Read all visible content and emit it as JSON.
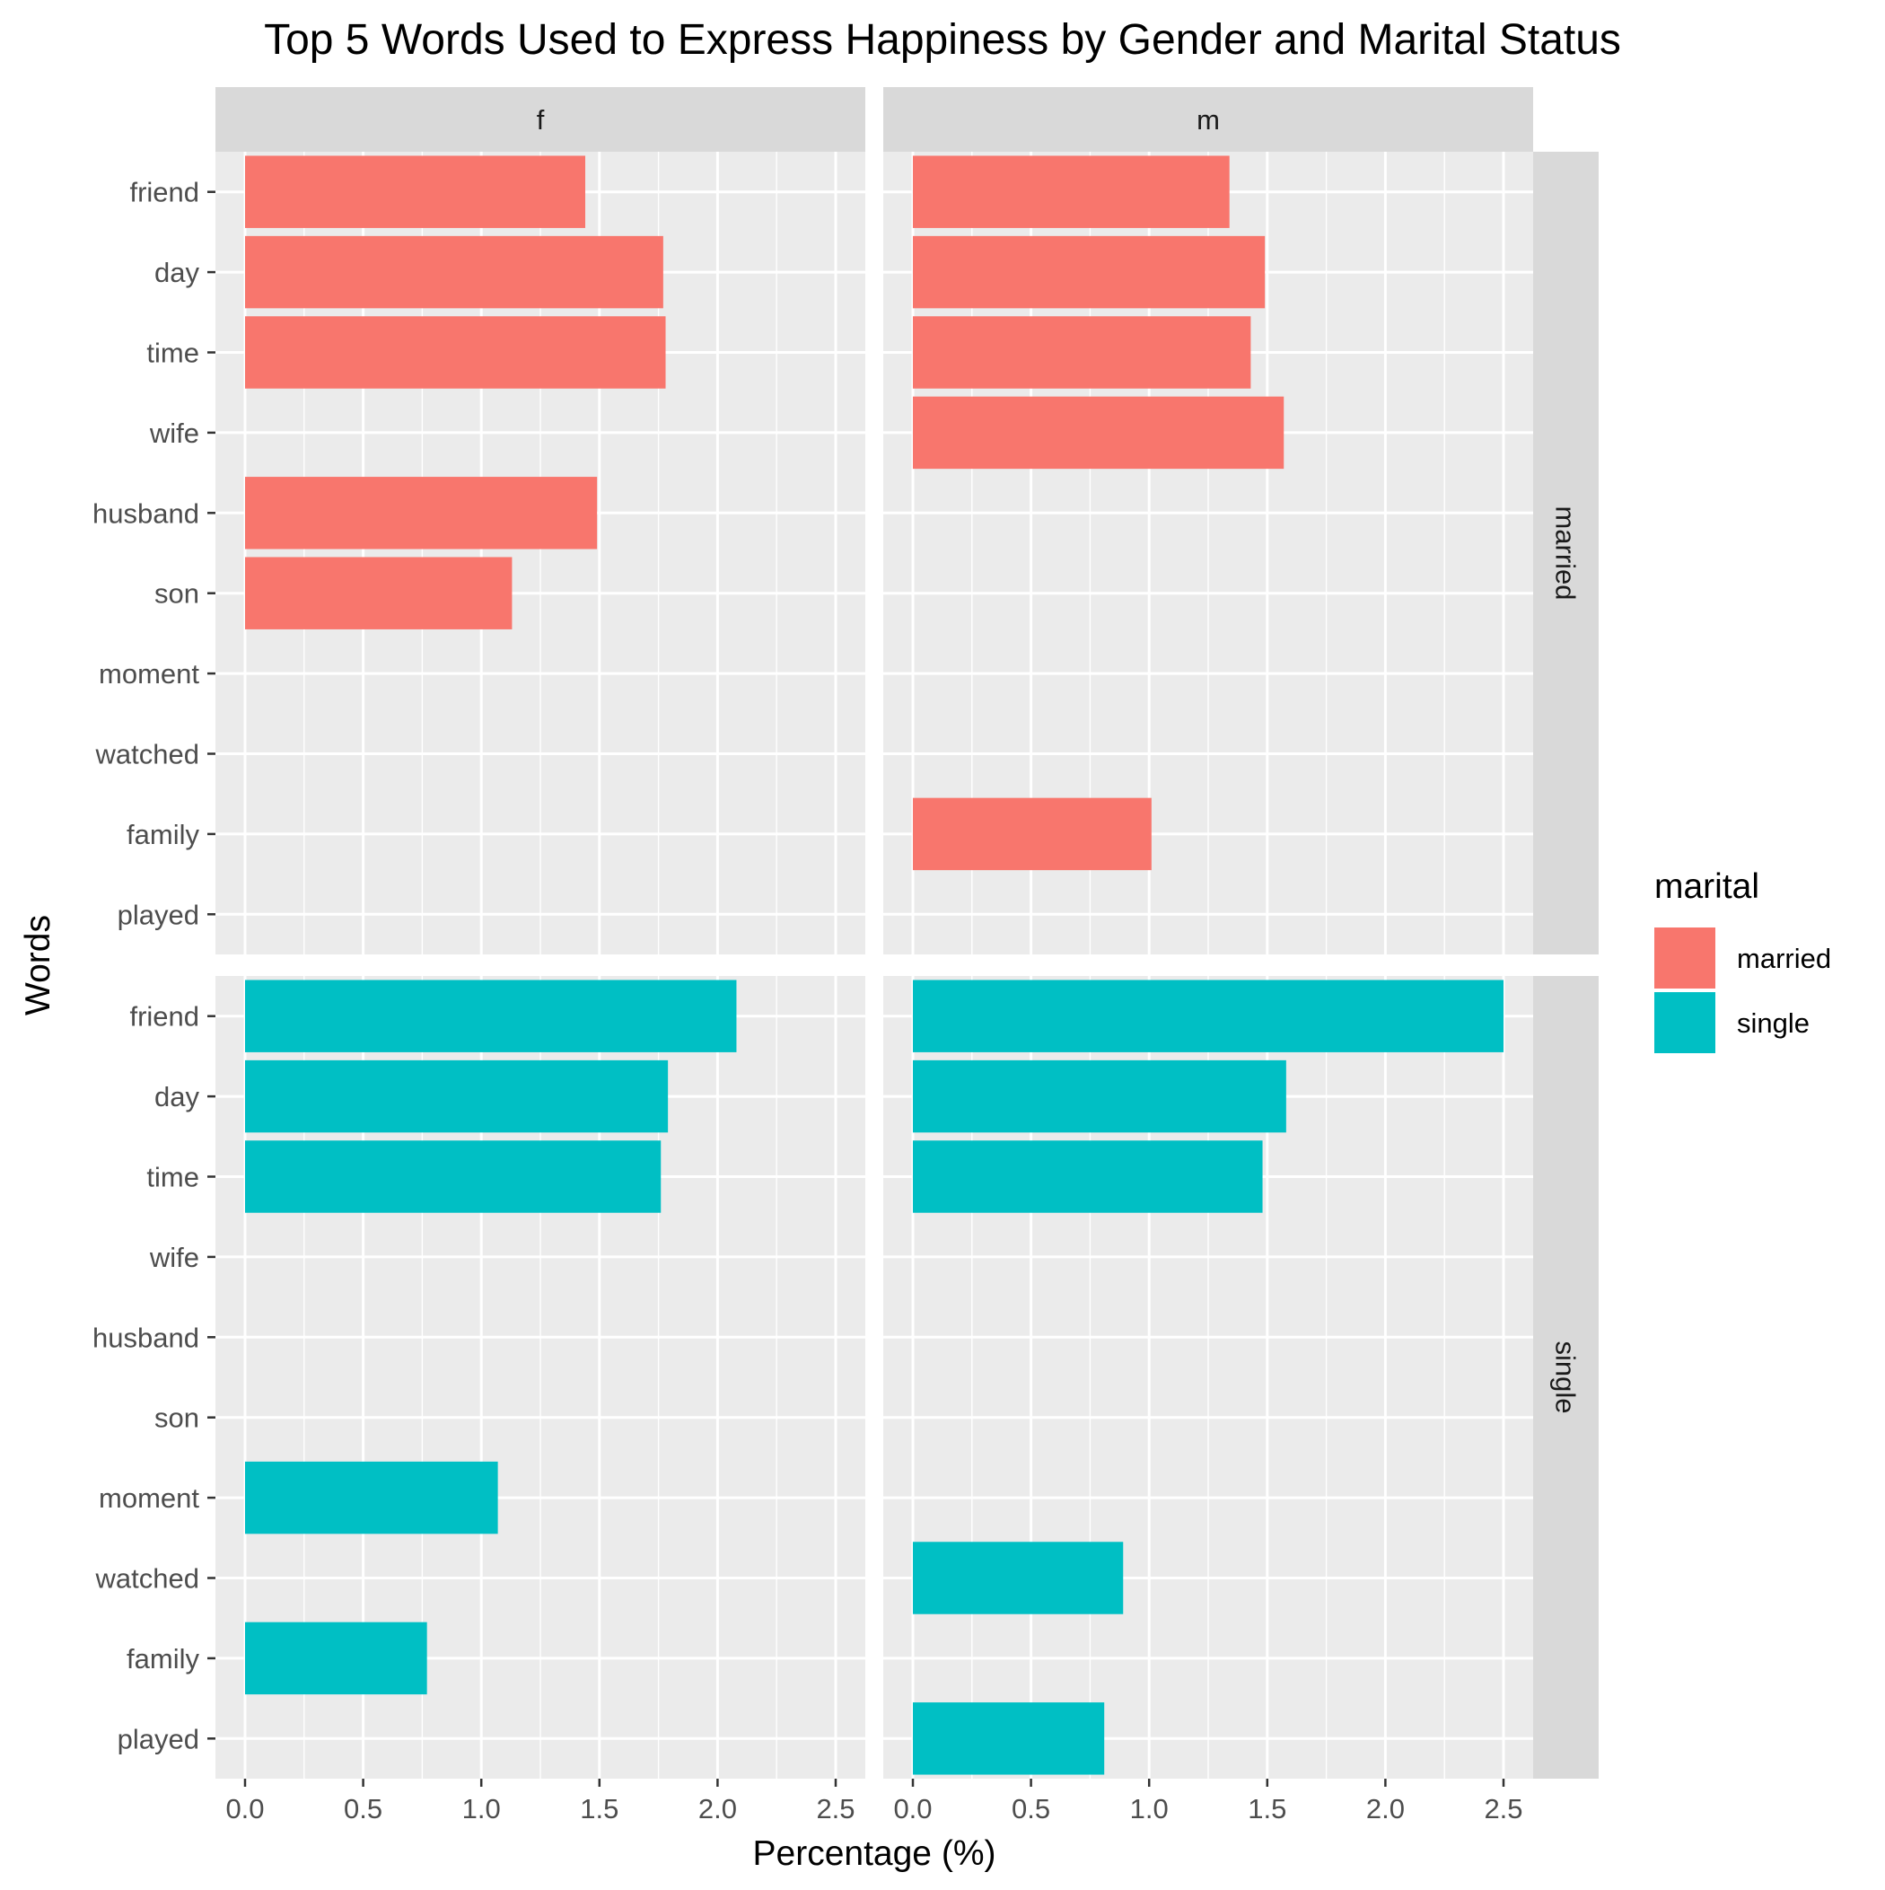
{
  "chart_data": {
    "type": "bar",
    "orientation": "horizontal",
    "title": "Top 5 Words Used to Express Happiness by Gender and Marital Status",
    "xlabel": "Percentage (%)",
    "ylabel": "Words",
    "xlim": [
      0,
      2.5
    ],
    "x_ticks": [
      "0.0",
      "0.5",
      "1.0",
      "1.5",
      "2.0",
      "2.5"
    ],
    "categories": [
      "friend",
      "day",
      "time",
      "wife",
      "husband",
      "son",
      "moment",
      "watched",
      "family",
      "played"
    ],
    "facet_columns": [
      "f",
      "m"
    ],
    "facet_rows": [
      "married",
      "single"
    ],
    "legend": {
      "title": "marital",
      "position": "right",
      "items": [
        {
          "label": "married",
          "color": "#F8766D"
        },
        {
          "label": "single",
          "color": "#00BFC4"
        }
      ]
    },
    "panels": [
      {
        "column": "f",
        "row": "married",
        "color": "#F8766D",
        "values": [
          1.44,
          1.77,
          1.78,
          null,
          1.49,
          1.13,
          null,
          null,
          null,
          null
        ]
      },
      {
        "column": "m",
        "row": "married",
        "color": "#F8766D",
        "values": [
          1.34,
          1.49,
          1.43,
          1.57,
          null,
          null,
          null,
          null,
          1.01,
          null
        ]
      },
      {
        "column": "f",
        "row": "single",
        "color": "#00BFC4",
        "values": [
          2.08,
          1.79,
          1.76,
          null,
          null,
          null,
          1.07,
          null,
          0.77,
          null
        ]
      },
      {
        "column": "m",
        "row": "single",
        "color": "#00BFC4",
        "values": [
          2.5,
          1.58,
          1.48,
          null,
          null,
          null,
          null,
          0.89,
          null,
          0.81
        ]
      }
    ],
    "grid": true,
    "colors": {
      "panel_background": "#EBEBEB",
      "strip_background": "#D9D9D9",
      "grid_line": "#FFFFFF",
      "axis_text": "#4D4D4D",
      "text": "#000000"
    }
  }
}
